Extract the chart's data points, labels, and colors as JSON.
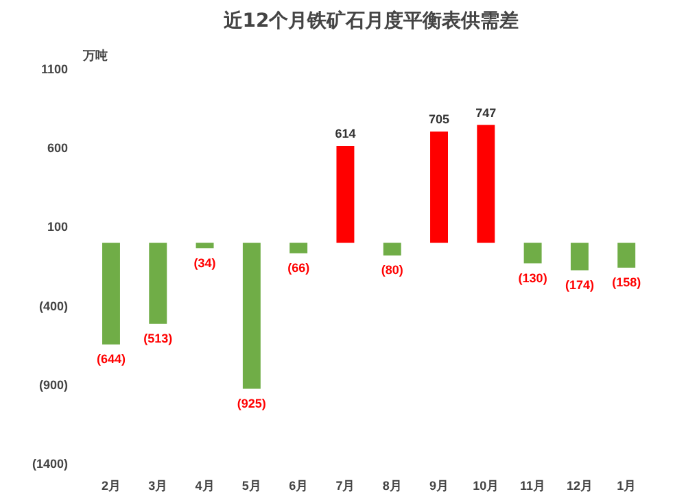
{
  "chart_data": {
    "type": "bar",
    "title": "近12个月铁矿石月度平衡表供需差",
    "ylabel": "万吨",
    "categories": [
      "2月",
      "3月",
      "4月",
      "5月",
      "6月",
      "7月",
      "8月",
      "9月",
      "10月",
      "11月",
      "12月",
      "1月"
    ],
    "values": [
      -644,
      -513,
      -34,
      -925,
      -66,
      614,
      -80,
      705,
      747,
      -130,
      -174,
      -158
    ],
    "colors": [
      "#70ad47",
      "#70ad47",
      "#70ad47",
      "#70ad47",
      "#70ad47",
      "#ff0000",
      "#70ad47",
      "#ff0000",
      "#ff0000",
      "#70ad47",
      "#70ad47",
      "#70ad47"
    ],
    "value_labels": [
      "(644)",
      "(513)",
      "(34)",
      "(925)",
      "(66)",
      "614",
      "(80)",
      "705",
      "747",
      "(130)",
      "(174)",
      "(158)"
    ],
    "ylim": [
      -1400,
      1100
    ],
    "yticks": [
      1100,
      600,
      100,
      {
        "value": -400,
        "label": "(400)"
      },
      {
        "value": -900,
        "label": "(900)"
      },
      {
        "value": -1400,
        "label": "(1400)"
      }
    ],
    "grid": false
  }
}
